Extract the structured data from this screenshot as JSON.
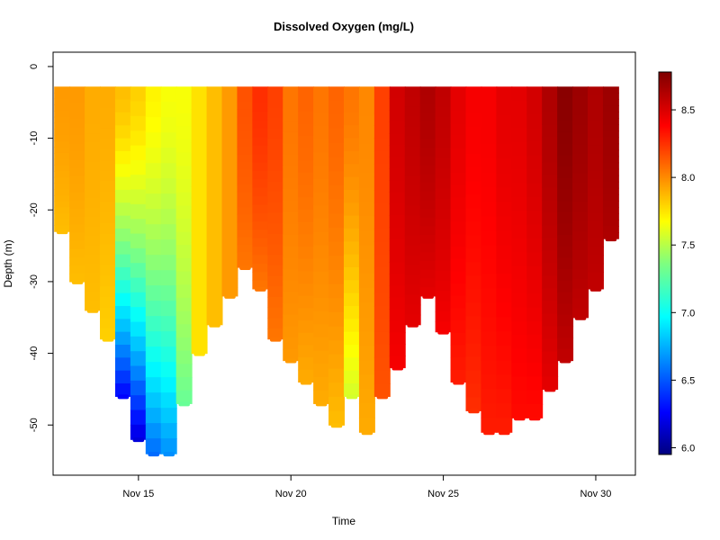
{
  "chart_data": {
    "type": "scatter",
    "title": "Dissolved Oxygen (mg/L)",
    "xlabel": "Time",
    "ylabel": "Depth (m)",
    "x_ticks": [
      "Nov 15",
      "Nov 20",
      "Nov 25",
      "Nov 30"
    ],
    "x_tick_days": [
      15,
      20,
      25,
      30
    ],
    "xlim_days": [
      12.2,
      31.3
    ],
    "ylim": [
      -57,
      2
    ],
    "y_ticks": [
      0,
      -10,
      -20,
      -30,
      -40,
      -50
    ],
    "colorbar": {
      "min": 5.95,
      "max": 8.78,
      "ticks": [
        "6.0",
        "6.5",
        "7.0",
        "7.5",
        "8.0",
        "8.5"
      ],
      "tick_values": [
        6.0,
        6.5,
        7.0,
        7.5,
        8.0,
        8.5
      ],
      "colormap": "jet"
    },
    "profile_top_depth": -2.8,
    "profiles": [
      {
        "day": 12.5,
        "max_depth": -23,
        "do_top": 8.0,
        "do_bottom": 7.9
      },
      {
        "day": 13.0,
        "max_depth": -30,
        "do_top": 8.0,
        "do_bottom": 7.9
      },
      {
        "day": 13.5,
        "max_depth": -34,
        "do_top": 7.95,
        "do_bottom": 7.9
      },
      {
        "day": 14.0,
        "max_depth": -38,
        "do_top": 7.95,
        "do_bottom": 7.85
      },
      {
        "day": 14.5,
        "max_depth": -46,
        "do_top": 7.9,
        "do_bottom": 6.3
      },
      {
        "day": 15.0,
        "max_depth": -52,
        "do_top": 7.85,
        "do_bottom": 6.2
      },
      {
        "day": 15.5,
        "max_depth": -54,
        "do_top": 7.75,
        "do_bottom": 6.6
      },
      {
        "day": 16.0,
        "max_depth": -54,
        "do_top": 7.7,
        "do_bottom": 6.7
      },
      {
        "day": 16.5,
        "max_depth": -47,
        "do_top": 7.7,
        "do_bottom": 7.3
      },
      {
        "day": 17.0,
        "max_depth": -40,
        "do_top": 7.8,
        "do_bottom": 7.8
      },
      {
        "day": 17.5,
        "max_depth": -36,
        "do_top": 7.9,
        "do_bottom": 7.9
      },
      {
        "day": 18.0,
        "max_depth": -32,
        "do_top": 8.0,
        "do_bottom": 8.0
      },
      {
        "day": 18.5,
        "max_depth": -28,
        "do_top": 8.2,
        "do_bottom": 8.1
      },
      {
        "day": 19.0,
        "max_depth": -31,
        "do_top": 8.3,
        "do_bottom": 8.1
      },
      {
        "day": 19.5,
        "max_depth": -38,
        "do_top": 8.25,
        "do_bottom": 8.1
      },
      {
        "day": 20.0,
        "max_depth": -41,
        "do_top": 8.1,
        "do_bottom": 8.0
      },
      {
        "day": 20.5,
        "max_depth": -44,
        "do_top": 8.15,
        "do_bottom": 7.95
      },
      {
        "day": 21.0,
        "max_depth": -47,
        "do_top": 8.1,
        "do_bottom": 7.95
      },
      {
        "day": 21.5,
        "max_depth": -50,
        "do_top": 8.15,
        "do_bottom": 7.9
      },
      {
        "day": 22.0,
        "max_depth": -46,
        "do_top": 8.1,
        "do_bottom": 7.6
      },
      {
        "day": 22.5,
        "max_depth": -51,
        "do_top": 8.05,
        "do_bottom": 7.95
      },
      {
        "day": 23.0,
        "max_depth": -46,
        "do_top": 8.25,
        "do_bottom": 8.2
      },
      {
        "day": 23.5,
        "max_depth": -42,
        "do_top": 8.55,
        "do_bottom": 8.45
      },
      {
        "day": 24.0,
        "max_depth": -36,
        "do_top": 8.6,
        "do_bottom": 8.5
      },
      {
        "day": 24.5,
        "max_depth": -32,
        "do_top": 8.65,
        "do_bottom": 8.5
      },
      {
        "day": 25.0,
        "max_depth": -37,
        "do_top": 8.6,
        "do_bottom": 8.45
      },
      {
        "day": 25.5,
        "max_depth": -44,
        "do_top": 8.5,
        "do_bottom": 8.35
      },
      {
        "day": 26.0,
        "max_depth": -48,
        "do_top": 8.45,
        "do_bottom": 8.3
      },
      {
        "day": 26.5,
        "max_depth": -51,
        "do_top": 8.45,
        "do_bottom": 8.35
      },
      {
        "day": 27.0,
        "max_depth": -51,
        "do_top": 8.5,
        "do_bottom": 8.35
      },
      {
        "day": 27.5,
        "max_depth": -49,
        "do_top": 8.5,
        "do_bottom": 8.4
      },
      {
        "day": 28.0,
        "max_depth": -49,
        "do_top": 8.55,
        "do_bottom": 8.4
      },
      {
        "day": 28.5,
        "max_depth": -45,
        "do_top": 8.65,
        "do_bottom": 8.5
      },
      {
        "day": 29.0,
        "max_depth": -41,
        "do_top": 8.75,
        "do_bottom": 8.6
      },
      {
        "day": 29.5,
        "max_depth": -35,
        "do_top": 8.7,
        "do_bottom": 8.6
      },
      {
        "day": 30.0,
        "max_depth": -31,
        "do_top": 8.65,
        "do_bottom": 8.6
      },
      {
        "day": 30.5,
        "max_depth": -24,
        "do_top": 8.7,
        "do_bottom": 8.65
      }
    ]
  }
}
